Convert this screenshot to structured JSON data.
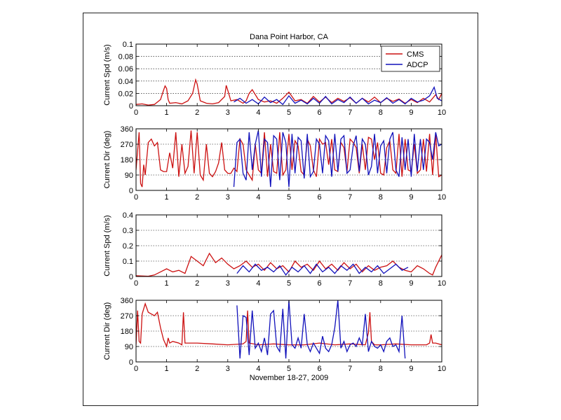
{
  "figure": {
    "title": "Dana Point Harbor, CA",
    "xlabel": "November 18-27, 2009"
  },
  "colors": {
    "cms": "#cc1111",
    "adcp": "#1111bb"
  },
  "chart_data": [
    {
      "type": "line",
      "title": "Dana Point Harbor, CA",
      "xlabel": "",
      "ylabel": "Current Spd (m/s)",
      "xlim": [
        0,
        10
      ],
      "ylim": [
        0,
        0.1
      ],
      "xticks": [
        0,
        1,
        2,
        3,
        4,
        5,
        6,
        7,
        8,
        9,
        10
      ],
      "yticks": [
        0,
        0.02,
        0.04,
        0.06,
        0.08,
        0.1
      ],
      "ytick_labels": [
        "0",
        "0.02",
        "0.04",
        "0.06",
        "0.08",
        "0.1"
      ],
      "grid": "y-dotted",
      "legend": "top-right",
      "series": [
        {
          "name": "CMS",
          "color": "#cc1111",
          "x": [
            0,
            0.2,
            0.4,
            0.6,
            0.8,
            0.9,
            0.95,
            1.0,
            1.05,
            1.1,
            1.3,
            1.5,
            1.7,
            1.85,
            1.95,
            2.0,
            2.1,
            2.3,
            2.5,
            2.7,
            2.9,
            2.95,
            3.0,
            3.1,
            3.3,
            3.5,
            3.6,
            3.7,
            3.8,
            4.0,
            4.2,
            4.4,
            4.6,
            4.8,
            5.0,
            5.2,
            5.4,
            5.6,
            5.8,
            6.0,
            6.2,
            6.4,
            6.6,
            6.8,
            7.0,
            7.2,
            7.4,
            7.6,
            7.8,
            8.0,
            8.2,
            8.4,
            8.6,
            8.8,
            9.0,
            9.2,
            9.4,
            9.6,
            9.8,
            9.9,
            10.0
          ],
          "y": [
            0.002,
            0.003,
            0.001,
            0.002,
            0.01,
            0.025,
            0.032,
            0.028,
            0.01,
            0.004,
            0.005,
            0.003,
            0.008,
            0.02,
            0.042,
            0.035,
            0.008,
            0.004,
            0.003,
            0.005,
            0.015,
            0.033,
            0.025,
            0.008,
            0.01,
            0.004,
            0.008,
            0.02,
            0.026,
            0.01,
            0.006,
            0.008,
            0.004,
            0.012,
            0.022,
            0.008,
            0.01,
            0.004,
            0.015,
            0.006,
            0.014,
            0.005,
            0.012,
            0.007,
            0.013,
            0.004,
            0.012,
            0.006,
            0.014,
            0.005,
            0.012,
            0.007,
            0.011,
            0.004,
            0.01,
            0.005,
            0.012,
            0.006,
            0.018,
            0.01,
            0.02
          ]
        },
        {
          "name": "ADCP",
          "color": "#1111bb",
          "x": [
            3.2,
            3.4,
            3.6,
            3.8,
            4.0,
            4.2,
            4.4,
            4.6,
            4.8,
            5.0,
            5.2,
            5.4,
            5.6,
            5.8,
            6.0,
            6.2,
            6.4,
            6.6,
            6.8,
            7.0,
            7.2,
            7.4,
            7.6,
            7.8,
            8.0,
            8.2,
            8.4,
            8.6,
            8.8,
            9.0,
            9.2,
            9.4,
            9.6,
            9.75,
            9.85,
            10.0
          ],
          "y": [
            0.006,
            0.012,
            0.004,
            0.01,
            0.003,
            0.014,
            0.005,
            0.01,
            0.002,
            0.016,
            0.004,
            0.009,
            0.003,
            0.012,
            0.004,
            0.015,
            0.003,
            0.01,
            0.005,
            0.014,
            0.004,
            0.012,
            0.003,
            0.009,
            0.005,
            0.013,
            0.004,
            0.01,
            0.003,
            0.012,
            0.006,
            0.009,
            0.016,
            0.03,
            0.012,
            0.008
          ]
        }
      ]
    },
    {
      "type": "line",
      "xlabel": "",
      "ylabel": "Current Dir (deg)",
      "xlim": [
        0,
        10
      ],
      "ylim": [
        0,
        360
      ],
      "xticks": [
        0,
        1,
        2,
        3,
        4,
        5,
        6,
        7,
        8,
        9,
        10
      ],
      "yticks": [
        0,
        90,
        180,
        270,
        360
      ],
      "ytick_labels": [
        "0",
        "90",
        "180",
        "270",
        "360"
      ],
      "grid": "y-dotted",
      "series": [
        {
          "name": "CMS",
          "color": "#cc1111",
          "x": [
            0,
            0.1,
            0.15,
            0.2,
            0.25,
            0.3,
            0.4,
            0.5,
            0.6,
            0.7,
            0.8,
            0.9,
            1.0,
            1.1,
            1.2,
            1.3,
            1.4,
            1.5,
            1.6,
            1.7,
            1.8,
            1.9,
            2.0,
            2.1,
            2.2,
            2.3,
            2.4,
            2.5,
            2.6,
            2.7,
            2.8,
            2.9,
            3.0,
            3.1,
            3.2,
            3.3,
            3.4,
            3.5,
            3.6,
            3.7,
            3.8,
            3.9,
            4.0,
            4.1,
            4.2,
            4.3,
            4.4,
            4.5,
            4.6,
            4.7,
            4.8,
            4.9,
            5.0,
            5.1,
            5.2,
            5.3,
            5.4,
            5.5,
            5.6,
            5.7,
            5.8,
            5.9,
            6.0,
            6.1,
            6.2,
            6.3,
            6.4,
            6.5,
            6.6,
            6.7,
            6.8,
            6.9,
            7.0,
            7.1,
            7.2,
            7.3,
            7.4,
            7.5,
            7.6,
            7.7,
            7.8,
            7.9,
            8.0,
            8.1,
            8.2,
            8.3,
            8.4,
            8.5,
            8.6,
            8.7,
            8.8,
            8.9,
            9.0,
            9.1,
            9.2,
            9.3,
            9.4,
            9.5,
            9.6,
            9.7,
            9.8,
            9.9,
            10.0
          ],
          "y": [
            120,
            340,
            40,
            20,
            150,
            90,
            280,
            300,
            260,
            280,
            120,
            110,
            110,
            220,
            130,
            340,
            80,
            270,
            100,
            140,
            350,
            100,
            340,
            90,
            60,
            270,
            100,
            80,
            110,
            160,
            280,
            120,
            100,
            100,
            130,
            110,
            300,
            270,
            120,
            90,
            60,
            270,
            120,
            100,
            340,
            80,
            270,
            110,
            100,
            340,
            90,
            120,
            330,
            120,
            290,
            260,
            110,
            90,
            300,
            260,
            120,
            80,
            300,
            270,
            280,
            150,
            300,
            120,
            110,
            280,
            250,
            110,
            300,
            280,
            250,
            100,
            270,
            120,
            310,
            300,
            180,
            280,
            100,
            90,
            250,
            290,
            120,
            100,
            330,
            80,
            300,
            120,
            110,
            270,
            100,
            120,
            300,
            110,
            330,
            90,
            330,
            80,
            90
          ]
        },
        {
          "name": "ADCP",
          "color": "#1111bb",
          "x": [
            3.2,
            3.3,
            3.4,
            3.5,
            3.6,
            3.7,
            3.8,
            3.9,
            4.0,
            4.1,
            4.2,
            4.3,
            4.4,
            4.5,
            4.6,
            4.7,
            4.8,
            4.9,
            5.0,
            5.1,
            5.2,
            5.3,
            5.4,
            5.5,
            5.6,
            5.7,
            5.8,
            5.9,
            6.0,
            6.1,
            6.2,
            6.3,
            6.4,
            6.5,
            6.6,
            6.7,
            6.8,
            6.9,
            7.0,
            7.1,
            7.2,
            7.3,
            7.4,
            7.5,
            7.6,
            7.7,
            7.8,
            7.9,
            8.0,
            8.1,
            8.2,
            8.3,
            8.4,
            8.5,
            8.6,
            8.7,
            8.8,
            8.9,
            9.0,
            9.1,
            9.2,
            9.3,
            9.4,
            9.5,
            9.6,
            9.7,
            9.8,
            9.9,
            10.0
          ],
          "y": [
            20,
            280,
            300,
            100,
            60,
            340,
            120,
            270,
            350,
            80,
            300,
            280,
            20,
            320,
            300,
            60,
            340,
            280,
            20,
            330,
            100,
            310,
            290,
            70,
            330,
            80,
            110,
            300,
            270,
            100,
            320,
            290,
            80,
            330,
            110,
            300,
            320,
            100,
            120,
            260,
            320,
            110,
            300,
            270,
            90,
            140,
            330,
            100,
            260,
            290,
            100,
            300,
            340,
            120,
            80,
            310,
            120,
            300,
            80,
            330,
            110,
            300,
            120,
            300,
            280,
            180,
            340,
            260,
            270
          ]
        }
      ]
    },
    {
      "type": "line",
      "xlabel": "",
      "ylabel": "Current Spd (m/s)",
      "xlim": [
        0,
        10
      ],
      "ylim": [
        0,
        0.4
      ],
      "xticks": [
        0,
        1,
        2,
        3,
        4,
        5,
        6,
        7,
        8,
        9,
        10
      ],
      "yticks": [
        0,
        0.1,
        0.2,
        0.3,
        0.4
      ],
      "ytick_labels": [
        "0",
        "0.1",
        "0.2",
        "0.3",
        "0.4"
      ],
      "grid": "y-dotted",
      "series": [
        {
          "name": "CMS",
          "color": "#cc1111",
          "x": [
            0,
            0.2,
            0.4,
            0.6,
            0.8,
            1.0,
            1.2,
            1.4,
            1.6,
            1.8,
            2.0,
            2.2,
            2.4,
            2.6,
            2.8,
            3.0,
            3.2,
            3.4,
            3.6,
            3.8,
            4.0,
            4.2,
            4.4,
            4.6,
            4.8,
            5.0,
            5.2,
            5.4,
            5.6,
            5.8,
            6.0,
            6.2,
            6.4,
            6.6,
            6.8,
            7.0,
            7.2,
            7.4,
            7.6,
            7.8,
            8.0,
            8.2,
            8.4,
            8.6,
            8.8,
            9.0,
            9.2,
            9.4,
            9.6,
            9.7,
            9.8,
            9.9,
            10.0
          ],
          "y": [
            0.005,
            0.003,
            0.002,
            0.01,
            0.03,
            0.05,
            0.03,
            0.04,
            0.02,
            0.13,
            0.1,
            0.07,
            0.15,
            0.09,
            0.12,
            0.08,
            0.05,
            0.07,
            0.1,
            0.06,
            0.08,
            0.04,
            0.09,
            0.05,
            0.07,
            0.03,
            0.1,
            0.06,
            0.08,
            0.04,
            0.1,
            0.05,
            0.08,
            0.04,
            0.09,
            0.05,
            0.08,
            0.03,
            0.07,
            0.04,
            0.06,
            0.07,
            0.1,
            0.06,
            0.04,
            0.03,
            0.07,
            0.05,
            0.02,
            0.01,
            0.06,
            0.1,
            0.14
          ]
        },
        {
          "name": "ADCP",
          "color": "#1111bb",
          "x": [
            3.3,
            3.5,
            3.7,
            3.9,
            4.1,
            4.3,
            4.5,
            4.7,
            4.9,
            5.1,
            5.3,
            5.5,
            5.7,
            5.9,
            6.1,
            6.3,
            6.5,
            6.7,
            6.9,
            7.1,
            7.3,
            7.5,
            7.7,
            7.9,
            8.1,
            8.3,
            8.5,
            8.7,
            8.9
          ],
          "y": [
            0.02,
            0.07,
            0.03,
            0.08,
            0.04,
            0.06,
            0.03,
            0.07,
            0.01,
            0.06,
            0.03,
            0.07,
            0.02,
            0.08,
            0.03,
            0.06,
            0.02,
            0.07,
            0.04,
            0.08,
            0.02,
            0.06,
            0.03,
            0.07,
            0.02,
            0.05,
            0.08,
            0.04,
            0.06
          ]
        }
      ]
    },
    {
      "type": "line",
      "xlabel": "November 18-27, 2009",
      "ylabel": "Current Dir (deg)",
      "xlim": [
        0,
        10
      ],
      "ylim": [
        0,
        360
      ],
      "xticks": [
        0,
        1,
        2,
        3,
        4,
        5,
        6,
        7,
        8,
        9,
        10
      ],
      "yticks": [
        0,
        90,
        180,
        270,
        360
      ],
      "ytick_labels": [
        "0",
        "90",
        "180",
        "270",
        "360"
      ],
      "grid": "y-dotted",
      "series": [
        {
          "name": "CMS",
          "color": "#cc1111",
          "x": [
            0,
            0.05,
            0.1,
            0.15,
            0.2,
            0.3,
            0.4,
            0.5,
            0.6,
            0.7,
            0.8,
            0.9,
            1.0,
            1.05,
            1.1,
            1.2,
            1.4,
            1.5,
            1.55,
            1.6,
            1.7,
            2.0,
            2.5,
            3.0,
            3.5,
            3.6,
            3.65,
            3.7,
            4.0,
            4.5,
            5.0,
            5.5,
            6.0,
            6.5,
            7.0,
            7.5,
            7.6,
            7.65,
            7.7,
            7.8,
            8.0,
            8.5,
            9.0,
            9.5,
            9.6,
            9.65,
            9.7,
            9.8,
            10.0
          ],
          "y": [
            100,
            300,
            120,
            110,
            280,
            340,
            290,
            280,
            270,
            290,
            200,
            130,
            90,
            140,
            110,
            120,
            110,
            100,
            290,
            110,
            110,
            110,
            105,
            100,
            105,
            120,
            300,
            110,
            100,
            105,
            100,
            100,
            110,
            100,
            105,
            100,
            170,
            290,
            120,
            100,
            100,
            105,
            100,
            100,
            110,
            160,
            110,
            110,
            100
          ]
        },
        {
          "name": "ADCP",
          "color": "#1111bb",
          "x": [
            3.3,
            3.4,
            3.5,
            3.6,
            3.7,
            3.8,
            3.9,
            4.0,
            4.1,
            4.2,
            4.3,
            4.4,
            4.5,
            4.6,
            4.7,
            4.8,
            4.9,
            5.0,
            5.1,
            5.2,
            5.3,
            5.4,
            5.5,
            5.6,
            5.7,
            5.8,
            5.9,
            6.0,
            6.1,
            6.2,
            6.3,
            6.4,
            6.5,
            6.6,
            6.7,
            6.8,
            6.9,
            7.0,
            7.1,
            7.2,
            7.3,
            7.4,
            7.5,
            7.6,
            7.7,
            7.8,
            7.9,
            8.0,
            8.1,
            8.2,
            8.3,
            8.4,
            8.5,
            8.6,
            8.7,
            8.8
          ],
          "y": [
            330,
            20,
            270,
            260,
            40,
            300,
            80,
            110,
            60,
            140,
            40,
            280,
            300,
            90,
            60,
            310,
            20,
            360,
            100,
            80,
            140,
            80,
            280,
            100,
            60,
            110,
            80,
            50,
            150,
            80,
            60,
            100,
            200,
            360,
            80,
            120,
            60,
            100,
            110,
            90,
            140,
            100,
            280,
            60,
            120,
            90,
            80,
            100,
            60,
            120,
            140,
            90,
            100,
            60,
            270,
            20
          ]
        }
      ]
    }
  ]
}
